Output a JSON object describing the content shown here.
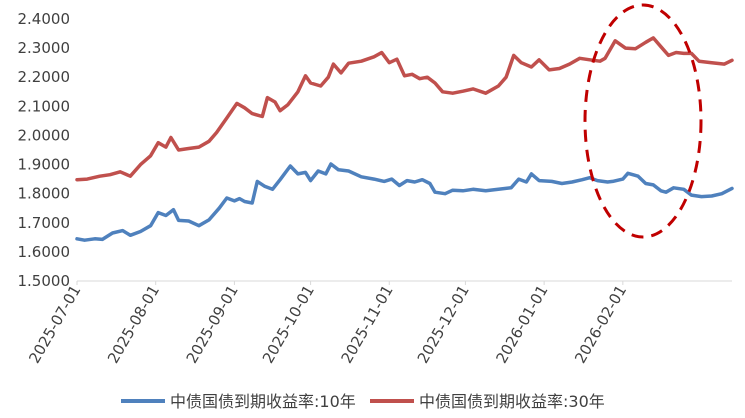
{
  "chart_data": {
    "type": "line",
    "title": "",
    "xlabel": "",
    "ylabel": "",
    "ylim": [
      1.5,
      2.4
    ],
    "y_ticks": [
      "2.4000",
      "2.3000",
      "2.2000",
      "2.1000",
      "2.0000",
      "1.9000",
      "1.8000",
      "1.7000",
      "1.6000",
      "1.5000"
    ],
    "x_tick_labels": [
      "2025-07-01",
      "2025-08-01",
      "2025-09-01",
      "2025-10-01",
      "2025-11-01",
      "2025-12-01",
      "2026-01-01",
      "2026-02-01"
    ],
    "grid": false,
    "legend_position": "bottom",
    "annotation": "dashed red ellipse highlighting Jan–Feb 2026",
    "series": [
      {
        "name": "中债国债到期收益率:10年",
        "color": "#4F81BD",
        "points": [
          [
            "2025-07-01",
            1.645
          ],
          [
            "2025-07-04",
            1.64
          ],
          [
            "2025-07-08",
            1.645
          ],
          [
            "2025-07-11",
            1.643
          ],
          [
            "2025-07-15",
            1.665
          ],
          [
            "2025-07-19",
            1.673
          ],
          [
            "2025-07-22",
            1.657
          ],
          [
            "2025-07-26",
            1.67
          ],
          [
            "2025-07-30",
            1.69
          ],
          [
            "2025-08-02",
            1.735
          ],
          [
            "2025-08-05",
            1.725
          ],
          [
            "2025-08-08",
            1.745
          ],
          [
            "2025-08-10",
            1.708
          ],
          [
            "2025-08-14",
            1.706
          ],
          [
            "2025-08-18",
            1.69
          ],
          [
            "2025-08-22",
            1.71
          ],
          [
            "2025-08-26",
            1.75
          ],
          [
            "2025-08-29",
            1.785
          ],
          [
            "2025-09-01",
            1.775
          ],
          [
            "2025-09-03",
            1.783
          ],
          [
            "2025-09-05",
            1.773
          ],
          [
            "2025-09-08",
            1.768
          ],
          [
            "2025-09-10",
            1.842
          ],
          [
            "2025-09-13",
            1.825
          ],
          [
            "2025-09-16",
            1.815
          ],
          [
            "2025-09-19",
            1.848
          ],
          [
            "2025-09-23",
            1.895
          ],
          [
            "2025-09-26",
            1.868
          ],
          [
            "2025-09-29",
            1.873
          ],
          [
            "2025-10-01",
            1.845
          ],
          [
            "2025-10-04",
            1.878
          ],
          [
            "2025-10-07",
            1.868
          ],
          [
            "2025-10-09",
            1.902
          ],
          [
            "2025-10-12",
            1.882
          ],
          [
            "2025-10-16",
            1.878
          ],
          [
            "2025-10-21",
            1.858
          ],
          [
            "2025-10-26",
            1.85
          ],
          [
            "2025-10-30",
            1.842
          ],
          [
            "2025-11-02",
            1.85
          ],
          [
            "2025-11-05",
            1.828
          ],
          [
            "2025-11-08",
            1.845
          ],
          [
            "2025-11-11",
            1.84
          ],
          [
            "2025-11-14",
            1.848
          ],
          [
            "2025-11-17",
            1.835
          ],
          [
            "2025-11-19",
            1.805
          ],
          [
            "2025-11-23",
            1.8
          ],
          [
            "2025-11-26",
            1.812
          ],
          [
            "2025-11-30",
            1.81
          ],
          [
            "2025-12-04",
            1.815
          ],
          [
            "2025-12-09",
            1.81
          ],
          [
            "2025-12-14",
            1.815
          ],
          [
            "2025-12-19",
            1.82
          ],
          [
            "2025-12-22",
            1.85
          ],
          [
            "2025-12-25",
            1.84
          ],
          [
            "2025-12-27",
            1.868
          ],
          [
            "2025-12-30",
            1.845
          ],
          [
            "2026-01-04",
            1.842
          ],
          [
            "2026-01-08",
            1.835
          ],
          [
            "2026-01-12",
            1.84
          ],
          [
            "2026-01-16",
            1.848
          ],
          [
            "2026-01-19",
            1.855
          ],
          [
            "2026-01-22",
            1.845
          ],
          [
            "2026-01-26",
            1.84
          ],
          [
            "2026-01-28",
            1.842
          ],
          [
            "2026-02-01",
            1.85
          ],
          [
            "2026-02-03",
            1.87
          ],
          [
            "2026-02-07",
            1.86
          ],
          [
            "2026-02-10",
            1.835
          ],
          [
            "2026-02-13",
            1.83
          ],
          [
            "2026-02-16",
            1.81
          ],
          [
            "2026-02-18",
            1.805
          ],
          [
            "2026-02-21",
            1.82
          ],
          [
            "2026-02-25",
            1.815
          ],
          [
            "2026-02-28",
            1.795
          ],
          [
            "2026-03-04",
            1.79
          ],
          [
            "2026-03-08",
            1.792
          ],
          [
            "2026-03-12",
            1.8
          ],
          [
            "2026-03-16",
            1.818
          ]
        ]
      },
      {
        "name": "中债国债到期收益率:30年",
        "color": "#C0504D",
        "points": [
          [
            "2025-07-01",
            1.848
          ],
          [
            "2025-07-05",
            1.85
          ],
          [
            "2025-07-10",
            1.86
          ],
          [
            "2025-07-14",
            1.865
          ],
          [
            "2025-07-18",
            1.875
          ],
          [
            "2025-07-22",
            1.86
          ],
          [
            "2025-07-26",
            1.9
          ],
          [
            "2025-07-30",
            1.93
          ],
          [
            "2025-08-02",
            1.975
          ],
          [
            "2025-08-05",
            1.96
          ],
          [
            "2025-08-07",
            1.993
          ],
          [
            "2025-08-10",
            1.95
          ],
          [
            "2025-08-14",
            1.955
          ],
          [
            "2025-08-18",
            1.96
          ],
          [
            "2025-08-22",
            1.98
          ],
          [
            "2025-08-25",
            2.01
          ],
          [
            "2025-08-29",
            2.06
          ],
          [
            "2025-09-02",
            2.11
          ],
          [
            "2025-09-05",
            2.095
          ],
          [
            "2025-09-08",
            2.075
          ],
          [
            "2025-09-12",
            2.065
          ],
          [
            "2025-09-14",
            2.13
          ],
          [
            "2025-09-17",
            2.115
          ],
          [
            "2025-09-19",
            2.085
          ],
          [
            "2025-09-22",
            2.105
          ],
          [
            "2025-09-26",
            2.15
          ],
          [
            "2025-09-29",
            2.205
          ],
          [
            "2025-10-01",
            2.18
          ],
          [
            "2025-10-05",
            2.17
          ],
          [
            "2025-10-08",
            2.2
          ],
          [
            "2025-10-10",
            2.245
          ],
          [
            "2025-10-13",
            2.215
          ],
          [
            "2025-10-16",
            2.248
          ],
          [
            "2025-10-21",
            2.255
          ],
          [
            "2025-10-26",
            2.27
          ],
          [
            "2025-10-29",
            2.285
          ],
          [
            "2025-11-01",
            2.25
          ],
          [
            "2025-11-04",
            2.262
          ],
          [
            "2025-11-07",
            2.205
          ],
          [
            "2025-11-10",
            2.21
          ],
          [
            "2025-11-13",
            2.195
          ],
          [
            "2025-11-16",
            2.2
          ],
          [
            "2025-11-19",
            2.18
          ],
          [
            "2025-11-22",
            2.15
          ],
          [
            "2025-11-26",
            2.145
          ],
          [
            "2025-11-30",
            2.152
          ],
          [
            "2025-12-04",
            2.16
          ],
          [
            "2025-12-09",
            2.145
          ],
          [
            "2025-12-14",
            2.17
          ],
          [
            "2025-12-17",
            2.2
          ],
          [
            "2025-12-20",
            2.275
          ],
          [
            "2025-12-23",
            2.25
          ],
          [
            "2025-12-27",
            2.235
          ],
          [
            "2025-12-30",
            2.26
          ],
          [
            "2026-01-03",
            2.225
          ],
          [
            "2026-01-07",
            2.23
          ],
          [
            "2026-01-11",
            2.245
          ],
          [
            "2026-01-15",
            2.265
          ],
          [
            "2026-01-19",
            2.26
          ],
          [
            "2026-01-23",
            2.255
          ],
          [
            "2026-01-25",
            2.265
          ],
          [
            "2026-01-29",
            2.325
          ],
          [
            "2026-02-02",
            2.3
          ],
          [
            "2026-02-06",
            2.298
          ],
          [
            "2026-02-10",
            2.32
          ],
          [
            "2026-02-13",
            2.335
          ],
          [
            "2026-02-16",
            2.305
          ],
          [
            "2026-02-19",
            2.275
          ],
          [
            "2026-02-22",
            2.285
          ],
          [
            "2026-02-25",
            2.282
          ],
          [
            "2026-02-28",
            2.282
          ],
          [
            "2026-03-03",
            2.255
          ],
          [
            "2026-03-08",
            2.25
          ],
          [
            "2026-03-13",
            2.245
          ],
          [
            "2026-03-16",
            2.258
          ]
        ]
      }
    ]
  }
}
